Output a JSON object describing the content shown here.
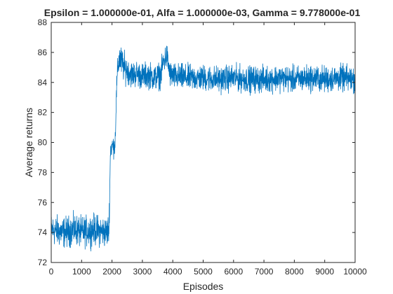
{
  "chart_data": {
    "type": "line",
    "title": "Epsilon = 1.000000e-01, Alfa = 1.000000e-03, Gamma = 9.778000e-01",
    "xlabel": "Episodes",
    "ylabel": "Average returns",
    "xlim": [
      0,
      10000
    ],
    "ylim": [
      72,
      88
    ],
    "xticks": [
      0,
      1000,
      2000,
      3000,
      4000,
      5000,
      6000,
      7000,
      8000,
      9000,
      10000
    ],
    "yticks": [
      72,
      74,
      76,
      78,
      80,
      82,
      84,
      86,
      88
    ],
    "grid": false,
    "legend": "none",
    "series_color": "#0072BD",
    "axis_color": "#262626",
    "series": [
      {
        "description_of_trend": "noisy per-episode average return",
        "x": [
          0,
          200,
          400,
          600,
          800,
          1000,
          1200,
          1400,
          1600,
          1800,
          1900,
          1950,
          2000,
          2050,
          2100,
          2150,
          2200,
          2250,
          2300,
          2400,
          2500,
          2600,
          2700,
          2800,
          3000,
          3200,
          3400,
          3600,
          3700,
          3800,
          3900,
          4000,
          4500,
          5000,
          5500,
          6000,
          6500,
          7000,
          7500,
          8000,
          8500,
          9000,
          9500,
          10000
        ],
        "y": [
          74.2,
          74.1,
          74.0,
          74.1,
          74.2,
          74.0,
          74.1,
          74.2,
          74.1,
          74.0,
          74.2,
          79.5,
          79.8,
          79.7,
          79.9,
          83.5,
          85.2,
          85.6,
          85.4,
          85.0,
          84.8,
          84.6,
          84.5,
          84.6,
          84.4,
          84.5,
          84.3,
          84.5,
          85.4,
          85.8,
          84.6,
          84.4,
          84.3,
          84.3,
          84.2,
          84.3,
          84.2,
          84.2,
          84.3,
          84.2,
          84.3,
          84.2,
          84.3,
          84.2
        ],
        "noise_amplitude": [
          0.7,
          0.7,
          0.7,
          0.7,
          0.7,
          0.7,
          0.7,
          0.7,
          0.7,
          0.7,
          0.7,
          0.5,
          0.5,
          0.5,
          0.5,
          0.6,
          0.7,
          0.7,
          0.7,
          0.7,
          0.6,
          0.6,
          0.6,
          0.6,
          0.6,
          0.6,
          0.6,
          0.6,
          0.6,
          0.6,
          0.6,
          0.6,
          0.6,
          0.6,
          0.6,
          0.6,
          0.6,
          0.6,
          0.6,
          0.6,
          0.6,
          0.6,
          0.6,
          0.6
        ]
      }
    ]
  }
}
